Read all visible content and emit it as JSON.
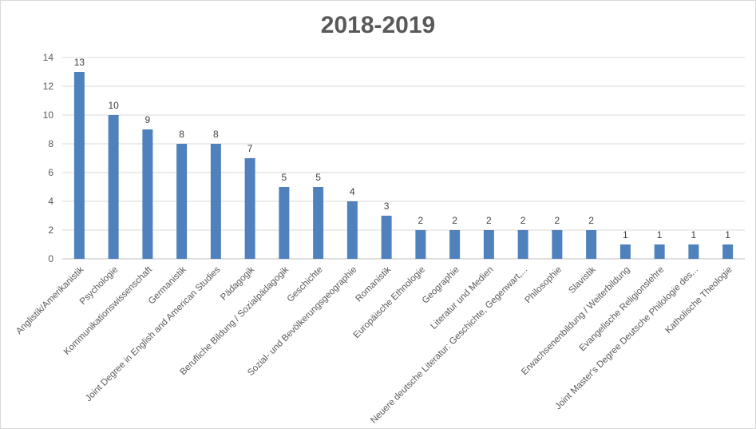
{
  "chart_data": {
    "type": "bar",
    "title": "2018-2019",
    "xlabel": "",
    "ylabel": "",
    "ylim": [
      0,
      14
    ],
    "yticks": [
      0,
      2,
      4,
      6,
      8,
      10,
      12,
      14
    ],
    "grid": true,
    "legend": "none",
    "bar_color": "#4f81bd",
    "categories": [
      "Anglistik/Amerikanistik",
      "Psychologie",
      "Kommunikationswissenschaft",
      "Germanistik",
      "Joint Degree in English and American Studies",
      "Pädagogik",
      "Berufliche Bildung / Sozialpädagogik",
      "Geschichte",
      "Sozial- und Bevölkerungsgeographie",
      "Romanistik",
      "Europäische Ethnologie",
      "Geographie",
      "Literatur und Medien",
      "Neuere deutsche Literatur: Geschichte, Gegenwart,...",
      "Philosophie",
      "Slavistik",
      "Erwachsenenbildung / Weiterbildung",
      "Evangelische Religionslehre",
      "Joint Master's Degree Deutsche Philologie des...",
      "Katholische Theologie"
    ],
    "values": [
      13,
      10,
      9,
      8,
      8,
      7,
      5,
      5,
      4,
      3,
      2,
      2,
      2,
      2,
      2,
      2,
      1,
      1,
      1,
      1
    ]
  }
}
